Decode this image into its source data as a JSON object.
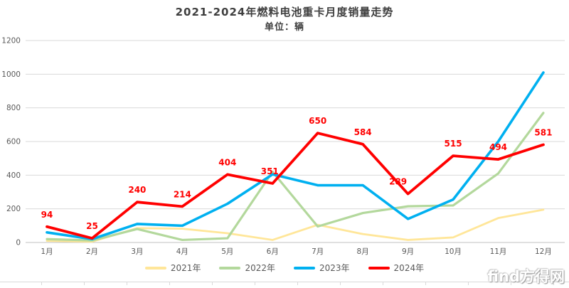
{
  "title": "2021-2024年燃料电池重卡月度销量走势",
  "subtitle": "单位：辆",
  "watermark": "find方得网",
  "chart_data": {
    "type": "line",
    "categories": [
      "1月",
      "2月",
      "3月",
      "4月",
      "5月",
      "6月",
      "7月",
      "8月",
      "9月",
      "10月",
      "11月",
      "12月"
    ],
    "series": [
      {
        "name": "2021年",
        "color": "#FFE699",
        "width": 2.8,
        "show_labels": false,
        "values": [
          10,
          5,
          85,
          82,
          55,
          15,
          105,
          50,
          15,
          30,
          145,
          195
        ]
      },
      {
        "name": "2022年",
        "color": "#B3D89C",
        "width": 3.2,
        "show_labels": false,
        "values": [
          20,
          12,
          80,
          15,
          25,
          420,
          95,
          175,
          215,
          220,
          410,
          770
        ]
      },
      {
        "name": "2023年",
        "color": "#00B0F0",
        "width": 3.6,
        "show_labels": false,
        "values": [
          60,
          20,
          110,
          100,
          230,
          405,
          340,
          340,
          140,
          255,
          600,
          1010
        ]
      },
      {
        "name": "2024年",
        "color": "#FF0000",
        "width": 3.8,
        "show_labels": true,
        "values": [
          94,
          25,
          240,
          214,
          404,
          351,
          650,
          584,
          289,
          515,
          494,
          581
        ],
        "label_offsets": {
          "5": [
            -4,
            0
          ],
          "8": [
            -14,
            0
          ]
        }
      }
    ],
    "title": "2021-2024年燃料电池重卡月度销量走势",
    "xlabel": "",
    "ylabel": "单位：辆",
    "ylim": [
      0,
      1200
    ],
    "ytick": 200,
    "grid": "horizontal",
    "legend_position": "bottom"
  }
}
